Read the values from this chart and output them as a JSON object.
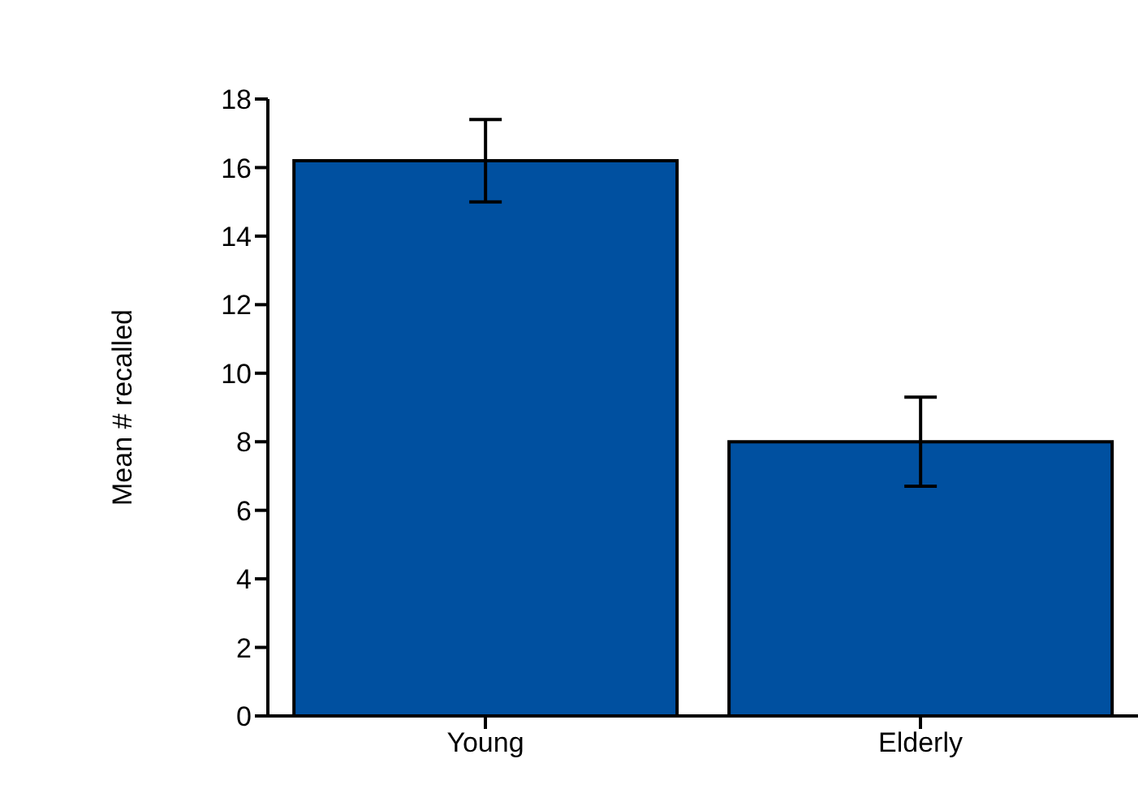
{
  "chart_data": {
    "type": "bar",
    "ylabel": "Mean # recalled",
    "categories": [
      "Young",
      "Elderly"
    ],
    "values": [
      16.2,
      8.0
    ],
    "color": "#0050a0",
    "errors": [
      1.2,
      1.3
    ],
    "ylim": [
      0,
      18
    ],
    "yticks": [
      0,
      2,
      4,
      6,
      8,
      10,
      12,
      14,
      16,
      18
    ],
    "grid": false,
    "legend": false
  }
}
